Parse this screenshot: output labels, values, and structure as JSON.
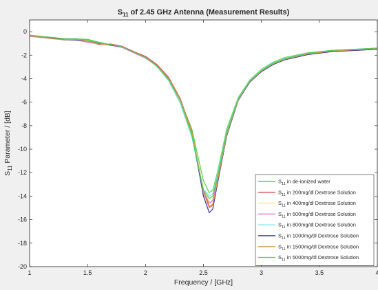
{
  "chart_data": {
    "type": "line",
    "title": {
      "main": "S",
      "sub": "11",
      "rest": " of 2.45 GHz Antenna (Measurement Results)"
    },
    "xlabel": "Frequency / [GHz]",
    "ylabel": {
      "main": "S",
      "sub": "11",
      "rest": " Parameter / [dB]"
    },
    "xlim": [
      1,
      4
    ],
    "ylim": [
      -20,
      1
    ],
    "xticks": [
      1,
      1.5,
      2,
      2.5,
      3,
      3.5,
      4
    ],
    "xtick_labels": [
      "1",
      "1.5",
      "2",
      "2.5",
      "3",
      "3.5",
      "4"
    ],
    "yticks": [
      0,
      -2,
      -4,
      -6,
      -8,
      -10,
      -12,
      -14,
      -16,
      -18,
      -20
    ],
    "ytick_labels": [
      "0",
      "-2",
      "-4",
      "-6",
      "-8",
      "-10",
      "-12",
      "-14",
      "-16",
      "-18",
      "-20"
    ],
    "grid": false,
    "legend": "bottom-right",
    "x": [
      1.0,
      1.1,
      1.2,
      1.3,
      1.4,
      1.5,
      1.6,
      1.7,
      1.8,
      1.9,
      2.0,
      2.1,
      2.2,
      2.3,
      2.4,
      2.45,
      2.5,
      2.55,
      2.58,
      2.62,
      2.7,
      2.8,
      2.9,
      3.0,
      3.1,
      3.2,
      3.4,
      3.6,
      3.8,
      4.0
    ],
    "series": [
      {
        "legend": {
          "main": "S",
          "sub": "11",
          "rest": " in de-ionized water"
        },
        "color": "#4cd84c",
        "values": [
          -0.3,
          -0.4,
          -0.5,
          -0.65,
          -0.6,
          -0.65,
          -0.9,
          -1.1,
          -1.3,
          -1.7,
          -2.2,
          -3.0,
          -4.1,
          -5.8,
          -8.3,
          -10.5,
          -12.7,
          -13.7,
          -13.5,
          -12.0,
          -8.3,
          -5.6,
          -4.1,
          -3.2,
          -2.6,
          -2.2,
          -1.8,
          -1.6,
          -1.5,
          -1.4
        ]
      },
      {
        "legend": {
          "main": "S",
          "sub": "11",
          "rest": " in 200mg/dl Dextrose Solution"
        },
        "color": "#e04848",
        "values": [
          -0.35,
          -0.45,
          -0.55,
          -0.6,
          -0.65,
          -0.8,
          -1.1,
          -1.05,
          -1.25,
          -1.7,
          -2.1,
          -2.8,
          -3.9,
          -5.7,
          -8.5,
          -11.0,
          -13.5,
          -14.9,
          -14.7,
          -12.8,
          -8.8,
          -5.8,
          -4.3,
          -3.4,
          -2.8,
          -2.4,
          -1.95,
          -1.7,
          -1.6,
          -1.5
        ]
      },
      {
        "legend": {
          "main": "S",
          "sub": "11",
          "rest": " in 400mg/dl Dextrose Solution"
        },
        "color": "#f5f06a",
        "values": [
          -0.35,
          -0.45,
          -0.6,
          -0.7,
          -0.65,
          -0.75,
          -1.0,
          -1.1,
          -1.3,
          -1.75,
          -2.2,
          -2.9,
          -4.0,
          -5.8,
          -8.6,
          -11.0,
          -13.4,
          -14.5,
          -14.3,
          -12.5,
          -8.6,
          -5.7,
          -4.2,
          -3.3,
          -2.7,
          -2.3,
          -1.9,
          -1.65,
          -1.55,
          -1.45
        ]
      },
      {
        "legend": {
          "main": "S",
          "sub": "11",
          "rest": " in 600mg/dl Dextrose Solution"
        },
        "color": "#e070d8",
        "values": [
          -0.4,
          -0.5,
          -0.6,
          -0.65,
          -0.7,
          -0.9,
          -1.05,
          -1.15,
          -1.35,
          -1.8,
          -2.25,
          -2.95,
          -4.1,
          -5.9,
          -8.7,
          -11.1,
          -13.6,
          -14.6,
          -14.4,
          -12.6,
          -8.7,
          -5.75,
          -4.25,
          -3.35,
          -2.75,
          -2.35,
          -1.9,
          -1.65,
          -1.55,
          -1.45
        ]
      },
      {
        "legend": {
          "main": "S",
          "sub": "11",
          "rest": " in 800mg/dl Dextrose Solution"
        },
        "color": "#7ee8e8",
        "values": [
          -0.3,
          -0.4,
          -0.5,
          -0.6,
          -0.6,
          -0.7,
          -0.95,
          -1.1,
          -1.3,
          -1.75,
          -2.2,
          -3.0,
          -4.2,
          -6.1,
          -9.0,
          -11.3,
          -13.4,
          -14.0,
          -13.8,
          -12.2,
          -8.5,
          -5.65,
          -4.15,
          -3.25,
          -2.65,
          -2.25,
          -1.85,
          -1.6,
          -1.5,
          -1.4
        ]
      },
      {
        "legend": {
          "main": "S",
          "sub": "11",
          "rest": " in 1000mg/dl Dextrose Solution"
        },
        "color": "#3030a0",
        "values": [
          -0.35,
          -0.45,
          -0.55,
          -0.7,
          -0.7,
          -0.8,
          -1.0,
          -1.15,
          -1.3,
          -1.75,
          -2.2,
          -2.9,
          -4.0,
          -5.8,
          -8.7,
          -11.3,
          -14.0,
          -15.4,
          -15.1,
          -13.0,
          -8.9,
          -5.85,
          -4.3,
          -3.4,
          -2.8,
          -2.4,
          -1.95,
          -1.7,
          -1.6,
          -1.5
        ]
      },
      {
        "legend": {
          "main": "S",
          "sub": "11",
          "rest": " in 1500mg/dl Dextrose Solution"
        },
        "color": "#d89a48",
        "values": [
          -0.35,
          -0.45,
          -0.6,
          -0.7,
          -0.65,
          -0.8,
          -1.05,
          -1.1,
          -1.3,
          -1.75,
          -2.2,
          -2.9,
          -4.0,
          -5.8,
          -8.6,
          -11.1,
          -13.7,
          -15.0,
          -14.8,
          -12.8,
          -8.8,
          -5.8,
          -4.25,
          -3.35,
          -2.75,
          -2.35,
          -1.9,
          -1.65,
          -1.55,
          -1.45
        ]
      },
      {
        "legend": {
          "main": "S",
          "sub": "11",
          "rest": " in 5000mg/dl Dextrose Solution"
        },
        "color": "#58c858",
        "values": [
          -0.3,
          -0.4,
          -0.5,
          -0.6,
          -0.6,
          -0.7,
          -0.95,
          -1.1,
          -1.3,
          -1.75,
          -2.2,
          -2.95,
          -4.1,
          -5.9,
          -8.8,
          -11.2,
          -13.5,
          -14.2,
          -14.0,
          -12.4,
          -8.6,
          -5.7,
          -4.2,
          -3.3,
          -2.7,
          -2.3,
          -1.85,
          -1.6,
          -1.5,
          -1.4
        ]
      }
    ]
  }
}
